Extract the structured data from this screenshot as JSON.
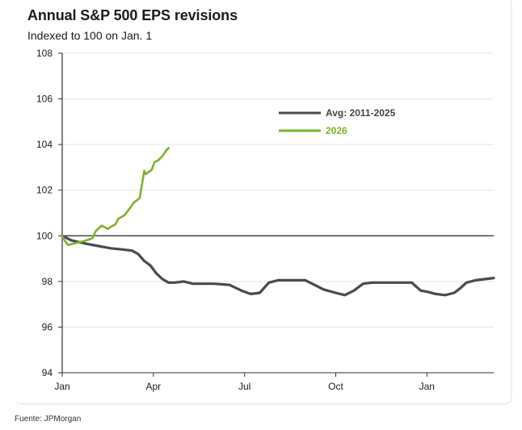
{
  "source": "Fuente: JPMorgan",
  "chart_data": {
    "type": "line",
    "title": "Annual S&P 500 EPS revisions",
    "subtitle": "Indexed to 100 on Jan. 1",
    "xlabel": "",
    "ylabel": "",
    "ylim": [
      94,
      108
    ],
    "yticks": [
      94,
      96,
      98,
      100,
      102,
      104,
      106,
      108
    ],
    "xlim": [
      0,
      14.2
    ],
    "xticks": [
      {
        "value": 0,
        "label": "Jan"
      },
      {
        "value": 3,
        "label": "Apr"
      },
      {
        "value": 6,
        "label": "Jul"
      },
      {
        "value": 9,
        "label": "Oct"
      },
      {
        "value": 12,
        "label": "Jan"
      }
    ],
    "reference_line": 100,
    "legend_position": "top-right",
    "series": [
      {
        "name": "Avg: 2011-2025",
        "color": "#4a4a4a",
        "x": [
          0,
          0.3,
          0.8,
          1.2,
          1.6,
          2.0,
          2.3,
          2.5,
          2.7,
          2.9,
          3.1,
          3.3,
          3.5,
          3.7,
          4.0,
          4.3,
          4.6,
          5.0,
          5.5,
          5.9,
          6.2,
          6.5,
          6.8,
          7.1,
          7.5,
          8.0,
          8.3,
          8.6,
          9.0,
          9.3,
          9.6,
          9.9,
          10.2,
          10.5,
          11.0,
          11.5,
          11.8,
          12.0,
          12.3,
          12.6,
          12.9,
          13.1,
          13.3,
          13.6,
          13.9,
          14.2
        ],
        "values": [
          100,
          99.8,
          99.65,
          99.55,
          99.45,
          99.4,
          99.35,
          99.2,
          98.9,
          98.7,
          98.35,
          98.1,
          97.95,
          97.95,
          98.0,
          97.9,
          97.9,
          97.9,
          97.85,
          97.6,
          97.45,
          97.5,
          97.95,
          98.05,
          98.05,
          98.05,
          97.85,
          97.65,
          97.5,
          97.4,
          97.6,
          97.9,
          97.95,
          97.95,
          97.95,
          97.95,
          97.6,
          97.55,
          97.45,
          97.4,
          97.5,
          97.7,
          97.95,
          98.05,
          98.1,
          98.15
        ]
      },
      {
        "name": "2026",
        "color": "#7ab32a",
        "x": [
          0,
          0.1,
          0.2,
          0.5,
          0.8,
          1.0,
          1.1,
          1.3,
          1.5,
          1.6,
          1.75,
          1.85,
          2.05,
          2.25,
          2.35,
          2.55,
          2.7,
          2.75,
          2.85,
          2.95,
          3.0,
          3.05,
          3.15,
          3.3,
          3.4,
          3.5
        ],
        "values": [
          100,
          99.75,
          99.6,
          99.7,
          99.8,
          99.9,
          100.2,
          100.45,
          100.3,
          100.4,
          100.5,
          100.75,
          100.9,
          101.25,
          101.45,
          101.65,
          102.85,
          102.7,
          102.8,
          102.9,
          103.1,
          103.25,
          103.3,
          103.5,
          103.7,
          103.85
        ]
      }
    ]
  }
}
